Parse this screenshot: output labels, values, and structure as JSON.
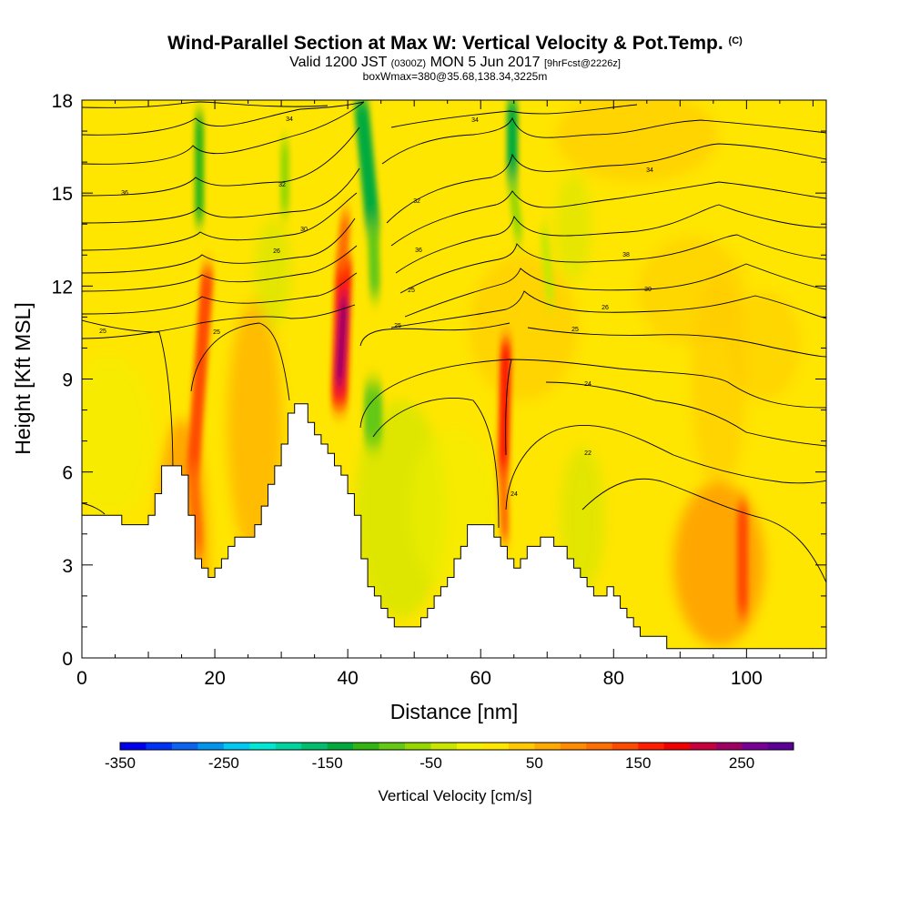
{
  "chart_data": {
    "type": "heatmap",
    "title": "Wind-Parallel Section at Max W: Vertical Velocity & Pot.Temp.",
    "title_mark": "(C)",
    "subtitle_prefix": "Valid 1200 JST",
    "subtitle_utc": "(0300Z)",
    "subtitle_date": "MON 5 Jun 2017",
    "subtitle_fcst": "[9hrFcst@2226z]",
    "subtitle2": "boxWmax=380@35.68,138.34,3225m",
    "xlabel": "Distance [nm]",
    "ylabel": "Height [Kft MSL]",
    "xlim": [
      0,
      112
    ],
    "ylim": [
      0,
      18
    ],
    "x_ticks": [
      "0",
      "20",
      "40",
      "60",
      "80",
      "100"
    ],
    "y_ticks": [
      "0",
      "3",
      "6",
      "9",
      "12",
      "15",
      "18"
    ],
    "colorbar": {
      "label": "Vertical Velocity [cm/s]",
      "tick_labels": [
        "-350",
        "-250",
        "-150",
        "-50",
        "50",
        "150",
        "250"
      ],
      "colors": [
        "#0000f0",
        "#0032f5",
        "#0a64f0",
        "#0096f0",
        "#00c8f0",
        "#00e6d2",
        "#00d2a0",
        "#00be6e",
        "#00aa3c",
        "#32b414",
        "#64c814",
        "#96d700",
        "#c8e600",
        "#f0f000",
        "#ffe600",
        "#ffc800",
        "#ffaa00",
        "#ff8c00",
        "#ff6e00",
        "#ff4b00",
        "#ff1e00",
        "#f00000",
        "#c8003c",
        "#a00064",
        "#780096",
        "#5a0096"
      ]
    },
    "contour_label_values": [
      "32",
      "34",
      "30",
      "26",
      "25",
      "24",
      "22",
      "36",
      "38"
    ],
    "terrain_kft": [
      [
        0,
        4.6
      ],
      [
        6,
        4.6
      ],
      [
        6,
        4.3
      ],
      [
        10,
        4.3
      ],
      [
        10,
        4.6
      ],
      [
        11,
        4.6
      ],
      [
        11,
        5.3
      ],
      [
        12,
        5.3
      ],
      [
        12,
        6.2
      ],
      [
        15,
        6.2
      ],
      [
        15,
        5.9
      ],
      [
        16,
        5.9
      ],
      [
        16,
        4.6
      ],
      [
        17,
        4.6
      ],
      [
        17,
        3.2
      ],
      [
        18,
        3.2
      ],
      [
        18,
        2.9
      ],
      [
        19,
        2.9
      ],
      [
        19,
        2.6
      ],
      [
        20,
        2.6
      ],
      [
        20,
        2.9
      ],
      [
        21,
        2.9
      ],
      [
        21,
        3.2
      ],
      [
        22,
        3.2
      ],
      [
        22,
        3.6
      ],
      [
        23,
        3.6
      ],
      [
        23,
        3.9
      ],
      [
        26,
        3.9
      ],
      [
        26,
        4.3
      ],
      [
        27,
        4.3
      ],
      [
        27,
        4.9
      ],
      [
        28,
        4.9
      ],
      [
        28,
        5.6
      ],
      [
        29,
        5.6
      ],
      [
        29,
        6.2
      ],
      [
        30,
        6.2
      ],
      [
        30,
        6.9
      ],
      [
        31,
        6.9
      ],
      [
        31,
        7.9
      ],
      [
        32,
        7.9
      ],
      [
        32,
        8.2
      ],
      [
        34,
        8.2
      ],
      [
        34,
        7.6
      ],
      [
        35,
        7.6
      ],
      [
        35,
        7.2
      ],
      [
        36,
        7.2
      ],
      [
        36,
        6.9
      ],
      [
        37,
        6.9
      ],
      [
        37,
        6.6
      ],
      [
        38,
        6.6
      ],
      [
        38,
        6.2
      ],
      [
        39,
        6.2
      ],
      [
        39,
        5.9
      ],
      [
        40,
        5.9
      ],
      [
        40,
        5.3
      ],
      [
        41,
        5.3
      ],
      [
        41,
        4.6
      ],
      [
        42,
        4.6
      ],
      [
        42,
        3.2
      ],
      [
        43,
        3.2
      ],
      [
        43,
        2.3
      ],
      [
        44,
        2.3
      ],
      [
        44,
        2.0
      ],
      [
        45,
        2.0
      ],
      [
        45,
        1.6
      ],
      [
        46,
        1.6
      ],
      [
        46,
        1.3
      ],
      [
        47,
        1.3
      ],
      [
        47,
        1.0
      ],
      [
        51,
        1.0
      ],
      [
        51,
        1.3
      ],
      [
        52,
        1.3
      ],
      [
        52,
        1.6
      ],
      [
        53,
        1.6
      ],
      [
        53,
        2.0
      ],
      [
        54,
        2.0
      ],
      [
        54,
        2.3
      ],
      [
        55,
        2.3
      ],
      [
        55,
        2.6
      ],
      [
        56,
        2.6
      ],
      [
        56,
        3.2
      ],
      [
        57,
        3.2
      ],
      [
        57,
        3.6
      ],
      [
        58,
        3.6
      ],
      [
        58,
        4.3
      ],
      [
        62,
        4.3
      ],
      [
        62,
        3.9
      ],
      [
        63,
        3.9
      ],
      [
        63,
        3.6
      ],
      [
        64,
        3.6
      ],
      [
        64,
        3.2
      ],
      [
        65,
        3.2
      ],
      [
        65,
        2.9
      ],
      [
        66,
        2.9
      ],
      [
        66,
        3.2
      ],
      [
        67,
        3.2
      ],
      [
        67,
        3.6
      ],
      [
        69,
        3.6
      ],
      [
        69,
        3.9
      ],
      [
        71,
        3.9
      ],
      [
        71,
        3.6
      ],
      [
        73,
        3.6
      ],
      [
        73,
        3.2
      ],
      [
        74,
        3.2
      ],
      [
        74,
        2.9
      ],
      [
        75,
        2.9
      ],
      [
        75,
        2.6
      ],
      [
        76,
        2.6
      ],
      [
        76,
        2.3
      ],
      [
        77,
        2.3
      ],
      [
        77,
        2.0
      ],
      [
        79,
        2.0
      ],
      [
        79,
        2.3
      ],
      [
        80,
        2.3
      ],
      [
        80,
        2.0
      ],
      [
        81,
        2.0
      ],
      [
        81,
        1.6
      ],
      [
        82,
        1.6
      ],
      [
        82,
        1.3
      ],
      [
        83,
        1.3
      ],
      [
        83,
        1.0
      ],
      [
        84,
        1.0
      ],
      [
        84,
        0.7
      ],
      [
        88,
        0.7
      ],
      [
        88,
        0.3
      ],
      [
        112,
        0.3
      ]
    ]
  }
}
